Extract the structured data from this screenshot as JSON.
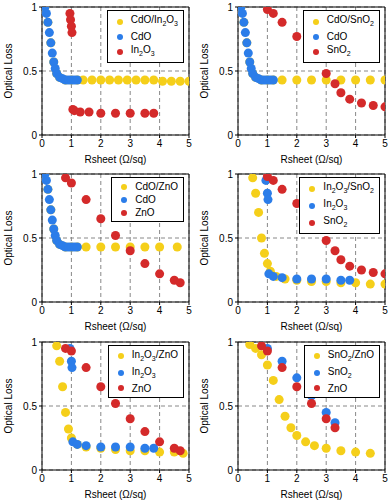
{
  "chart_data": [
    {
      "type": "scatter",
      "x_label": "Rsheet (Ω/sq)",
      "y_label": "Optical Loss",
      "xlim": [
        0,
        5
      ],
      "ylim": [
        0,
        1
      ],
      "xticks": [
        0,
        1,
        2,
        3,
        4,
        5
      ],
      "yticks": [
        0,
        0.5,
        1
      ],
      "grid": true,
      "legend": "upper right",
      "marker": "circle",
      "series": [
        {
          "name": "CdO/In2O3",
          "color": "#f5cf1a",
          "x": [
            0.1,
            0.2,
            0.3,
            0.4,
            0.5,
            0.6,
            0.8,
            1.0,
            1.2,
            1.4,
            1.7,
            2.0,
            2.3,
            2.6,
            2.9,
            3.2,
            3.5,
            3.8,
            4.1,
            4.4,
            4.7,
            5.0
          ],
          "values": [
            1.0,
            0.88,
            0.72,
            0.57,
            0.48,
            0.45,
            0.43,
            0.43,
            0.43,
            0.43,
            0.43,
            0.43,
            0.43,
            0.43,
            0.43,
            0.43,
            0.43,
            0.43,
            0.42,
            0.42,
            0.42,
            0.42
          ]
        },
        {
          "name": "CdO",
          "color": "#2b7de9",
          "x": [
            0.1,
            0.15,
            0.2,
            0.25,
            0.3,
            0.35,
            0.4,
            0.45,
            0.5,
            0.6,
            0.7,
            0.8,
            0.9,
            1.0,
            1.1,
            1.2
          ],
          "values": [
            1.0,
            0.95,
            0.88,
            0.8,
            0.72,
            0.64,
            0.57,
            0.52,
            0.48,
            0.45,
            0.44,
            0.43,
            0.43,
            0.43,
            0.43,
            0.43
          ]
        },
        {
          "name": "In2O3",
          "color": "#d42a2a",
          "x": [
            0.95,
            0.97,
            1.0,
            1.02,
            1.05,
            1.1,
            1.3,
            1.6,
            2.0,
            2.5,
            3.0,
            3.5,
            3.8
          ],
          "values": [
            0.95,
            0.9,
            0.85,
            0.8,
            0.2,
            0.19,
            0.18,
            0.18,
            0.17,
            0.17,
            0.17,
            0.17,
            0.17
          ]
        }
      ]
    },
    {
      "type": "scatter",
      "x_label": "Rsheet (Ω/sq)",
      "y_label": "Optical Loss",
      "xlim": [
        0,
        5
      ],
      "ylim": [
        0,
        1
      ],
      "xticks": [
        0,
        1,
        2,
        3,
        4,
        5
      ],
      "yticks": [
        0,
        0.5,
        1
      ],
      "grid": true,
      "legend": "upper right",
      "marker": "circle",
      "series": [
        {
          "name": "CdO/SnO2",
          "color": "#f5cf1a",
          "x": [
            0.1,
            0.2,
            0.3,
            0.4,
            0.5,
            0.6,
            0.8,
            1.0,
            1.2,
            1.5,
            2.0,
            2.5,
            3.0,
            3.5,
            4.0,
            4.5,
            5.0
          ],
          "values": [
            1.0,
            0.88,
            0.72,
            0.57,
            0.48,
            0.45,
            0.43,
            0.43,
            0.43,
            0.43,
            0.43,
            0.43,
            0.43,
            0.43,
            0.43,
            0.43,
            0.43
          ]
        },
        {
          "name": "CdO",
          "color": "#2b7de9",
          "x": [
            0.1,
            0.15,
            0.2,
            0.25,
            0.3,
            0.35,
            0.4,
            0.45,
            0.5,
            0.6,
            0.7,
            0.8,
            0.9,
            1.0,
            1.1,
            1.2
          ],
          "values": [
            1.0,
            0.95,
            0.88,
            0.8,
            0.72,
            0.64,
            0.57,
            0.52,
            0.48,
            0.45,
            0.44,
            0.43,
            0.43,
            0.43,
            0.43,
            0.43
          ]
        },
        {
          "name": "SnO2",
          "color": "#d42a2a",
          "x": [
            1.0,
            1.2,
            1.5,
            2.0,
            2.5,
            3.0,
            3.3,
            3.5,
            3.8,
            4.2,
            4.6,
            5.0
          ],
          "values": [
            0.98,
            0.95,
            0.88,
            0.77,
            0.63,
            0.48,
            0.4,
            0.33,
            0.28,
            0.25,
            0.23,
            0.22
          ]
        }
      ]
    },
    {
      "type": "scatter",
      "x_label": "Rsheet (Ω/sq)",
      "y_label": "Optical Loss",
      "xlim": [
        0,
        5
      ],
      "ylim": [
        0,
        1
      ],
      "xticks": [
        0,
        1,
        2,
        3,
        4,
        5
      ],
      "yticks": [
        0,
        0.5,
        1
      ],
      "grid": true,
      "legend": "upper right",
      "marker": "circle",
      "series": [
        {
          "name": "CdO/ZnO",
          "color": "#f5cf1a",
          "x": [
            0.1,
            0.2,
            0.3,
            0.4,
            0.5,
            0.6,
            0.8,
            1.0,
            1.2,
            1.5,
            2.0,
            2.5,
            3.0,
            3.5,
            4.0,
            4.6
          ],
          "values": [
            1.0,
            0.88,
            0.72,
            0.57,
            0.48,
            0.45,
            0.43,
            0.43,
            0.43,
            0.43,
            0.43,
            0.43,
            0.43,
            0.43,
            0.43,
            0.43
          ]
        },
        {
          "name": "CdO",
          "color": "#2b7de9",
          "x": [
            0.1,
            0.15,
            0.2,
            0.25,
            0.3,
            0.35,
            0.4,
            0.45,
            0.5,
            0.6,
            0.7,
            0.8,
            0.9,
            1.0,
            1.1,
            1.2
          ],
          "values": [
            1.0,
            0.95,
            0.88,
            0.8,
            0.72,
            0.64,
            0.57,
            0.52,
            0.48,
            0.45,
            0.44,
            0.43,
            0.43,
            0.43,
            0.43,
            0.43
          ]
        },
        {
          "name": "ZnO",
          "color": "#d42a2a",
          "x": [
            0.8,
            1.0,
            1.5,
            2.0,
            2.5,
            3.0,
            3.5,
            4.0,
            4.5,
            4.7
          ],
          "values": [
            0.97,
            0.93,
            0.8,
            0.65,
            0.52,
            0.4,
            0.3,
            0.22,
            0.17,
            0.15
          ]
        }
      ]
    },
    {
      "type": "scatter",
      "x_label": "Rsheet (Ω/sq)",
      "y_label": "Optical Loss",
      "xlim": [
        0,
        5
      ],
      "ylim": [
        0,
        1
      ],
      "xticks": [
        0,
        1,
        2,
        3,
        4,
        5
      ],
      "yticks": [
        0,
        0.5,
        1
      ],
      "grid": true,
      "legend": "upper right",
      "marker": "circle",
      "series": [
        {
          "name": "In2O3/SnO2",
          "color": "#f5cf1a",
          "x": [
            0.5,
            0.6,
            0.7,
            0.8,
            0.9,
            1.0,
            1.1,
            1.3,
            1.6,
            2.0,
            2.5,
            3.0,
            3.5,
            4.0,
            4.5,
            5.0
          ],
          "values": [
            0.97,
            0.85,
            0.7,
            0.5,
            0.38,
            0.3,
            0.24,
            0.2,
            0.18,
            0.17,
            0.16,
            0.16,
            0.15,
            0.15,
            0.14,
            0.14
          ]
        },
        {
          "name": "In2O3",
          "color": "#2b7de9",
          "x": [
            0.95,
            1.0,
            1.02,
            1.05,
            1.2,
            1.5,
            2.0,
            2.5,
            3.0,
            3.5,
            3.8
          ],
          "values": [
            0.95,
            0.85,
            0.8,
            0.22,
            0.2,
            0.19,
            0.18,
            0.18,
            0.18,
            0.17,
            0.17
          ]
        },
        {
          "name": "SnO2",
          "color": "#d42a2a",
          "x": [
            1.0,
            1.2,
            1.5,
            2.0,
            2.5,
            3.0,
            3.3,
            3.5,
            3.8,
            4.2,
            4.6,
            5.0
          ],
          "values": [
            0.98,
            0.95,
            0.88,
            0.77,
            0.63,
            0.48,
            0.4,
            0.33,
            0.28,
            0.25,
            0.23,
            0.22
          ]
        }
      ]
    },
    {
      "type": "scatter",
      "x_label": "Rsheet (Ω/sq)",
      "y_label": "Optical Loss",
      "xlim": [
        0,
        5
      ],
      "ylim": [
        0,
        1
      ],
      "xticks": [
        0,
        1,
        2,
        3,
        4,
        5
      ],
      "yticks": [
        0,
        0.5,
        1
      ],
      "grid": true,
      "legend": "upper right",
      "marker": "circle",
      "series": [
        {
          "name": "In2O3/ZnO",
          "color": "#f5cf1a",
          "x": [
            0.5,
            0.6,
            0.7,
            0.8,
            0.9,
            1.0,
            1.2,
            1.5,
            2.0,
            2.5,
            3.0,
            3.5,
            4.0,
            4.5,
            4.8
          ],
          "values": [
            0.97,
            0.85,
            0.65,
            0.45,
            0.32,
            0.25,
            0.2,
            0.18,
            0.17,
            0.16,
            0.15,
            0.15,
            0.14,
            0.14,
            0.13
          ]
        },
        {
          "name": "In2O3",
          "color": "#2b7de9",
          "x": [
            0.95,
            1.0,
            1.02,
            1.05,
            1.2,
            1.5,
            2.0,
            2.5,
            3.0,
            3.5,
            3.8
          ],
          "values": [
            0.95,
            0.85,
            0.8,
            0.22,
            0.2,
            0.19,
            0.18,
            0.18,
            0.18,
            0.17,
            0.17
          ]
        },
        {
          "name": "ZnO",
          "color": "#d42a2a",
          "x": [
            0.8,
            1.0,
            1.5,
            2.0,
            2.5,
            3.0,
            3.5,
            4.0,
            4.5,
            4.7
          ],
          "values": [
            0.95,
            0.93,
            0.8,
            0.65,
            0.52,
            0.4,
            0.3,
            0.22,
            0.17,
            0.15
          ]
        }
      ]
    },
    {
      "type": "scatter",
      "x_label": "Rsheet (Ω/sq)",
      "y_label": "Optical Loss",
      "xlim": [
        0,
        5
      ],
      "ylim": [
        0,
        1
      ],
      "xticks": [
        0,
        1,
        2,
        3,
        4,
        5
      ],
      "yticks": [
        0,
        0.5,
        1
      ],
      "grid": true,
      "legend": "upper right",
      "marker": "circle",
      "series": [
        {
          "name": "SnO2/ZnO",
          "color": "#f5cf1a",
          "x": [
            0.4,
            0.6,
            0.8,
            1.0,
            1.2,
            1.4,
            1.6,
            1.8,
            2.0,
            2.3,
            2.6,
            3.0,
            3.5,
            4.0,
            4.5
          ],
          "values": [
            0.98,
            0.95,
            0.9,
            0.82,
            0.7,
            0.55,
            0.42,
            0.33,
            0.27,
            0.22,
            0.19,
            0.17,
            0.15,
            0.14,
            0.13
          ]
        },
        {
          "name": "SnO2",
          "color": "#2b7de9",
          "x": [
            1.0,
            1.5,
            2.0,
            2.5,
            3.0,
            3.3
          ],
          "values": [
            0.95,
            0.85,
            0.72,
            0.58,
            0.45,
            0.37
          ]
        },
        {
          "name": "ZnO",
          "color": "#d42a2a",
          "x": [
            0.8,
            1.0,
            1.5,
            2.0,
            2.5,
            3.0,
            3.3
          ],
          "values": [
            0.97,
            0.93,
            0.8,
            0.65,
            0.52,
            0.4,
            0.33
          ]
        }
      ]
    }
  ]
}
